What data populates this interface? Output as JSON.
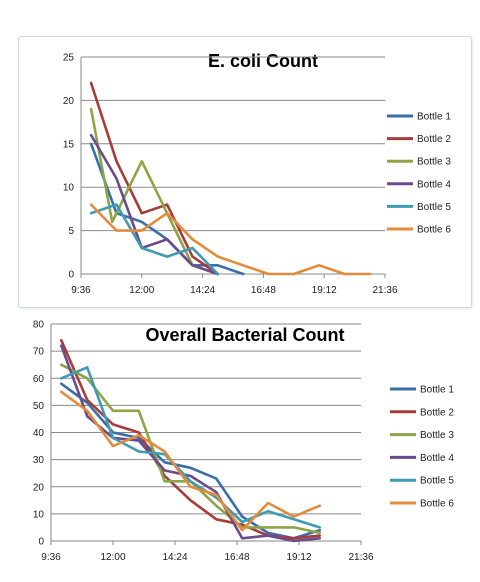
{
  "chart_data": [
    {
      "type": "line",
      "title": "E. coli Count",
      "xlabel": "",
      "ylabel": "",
      "x_ticks": [
        "9:36",
        "12:00",
        "14:24",
        "16:48",
        "19:12",
        "21:36"
      ],
      "y_ticks": [
        0,
        5,
        10,
        15,
        20,
        25
      ],
      "ylim": [
        0,
        25
      ],
      "xlim": [
        "9:36",
        "21:36"
      ],
      "grid": true,
      "legend_position": "right",
      "series": [
        {
          "name": "Bottle 1",
          "color": "#3a6ea8",
          "points": [
            [
              "10:00",
              15
            ],
            [
              "11:00",
              7
            ],
            [
              "12:00",
              6
            ],
            [
              "13:00",
              4
            ],
            [
              "14:00",
              1
            ],
            [
              "15:00",
              1
            ],
            [
              "16:00",
              0
            ]
          ]
        },
        {
          "name": "Bottle 2",
          "color": "#a83c3a",
          "points": [
            [
              "10:00",
              22
            ],
            [
              "11:00",
              13
            ],
            [
              "12:00",
              7
            ],
            [
              "13:00",
              8
            ],
            [
              "14:00",
              2
            ],
            [
              "15:00",
              0
            ]
          ]
        },
        {
          "name": "Bottle 3",
          "color": "#8ca546",
          "points": [
            [
              "10:00",
              19
            ],
            [
              "10:50",
              6
            ],
            [
              "12:00",
              13
            ],
            [
              "13:00",
              7
            ],
            [
              "14:00",
              1
            ],
            [
              "15:00",
              0
            ]
          ]
        },
        {
          "name": "Bottle 4",
          "color": "#6b4b8c",
          "points": [
            [
              "10:00",
              16
            ],
            [
              "11:00",
              11
            ],
            [
              "12:00",
              3
            ],
            [
              "13:00",
              4
            ],
            [
              "14:00",
              1
            ],
            [
              "15:00",
              0
            ]
          ]
        },
        {
          "name": "Bottle 5",
          "color": "#3e9bb3",
          "points": [
            [
              "10:00",
              7
            ],
            [
              "11:00",
              8
            ],
            [
              "12:00",
              3
            ],
            [
              "13:00",
              2
            ],
            [
              "14:00",
              3
            ],
            [
              "15:00",
              0
            ]
          ]
        },
        {
          "name": "Bottle 6",
          "color": "#e48b3a",
          "points": [
            [
              "10:00",
              8
            ],
            [
              "11:00",
              5
            ],
            [
              "12:00",
              5
            ],
            [
              "13:00",
              7
            ],
            [
              "14:00",
              4
            ],
            [
              "15:00",
              2
            ],
            [
              "16:00",
              1
            ],
            [
              "17:00",
              0
            ],
            [
              "18:00",
              0
            ],
            [
              "19:00",
              1
            ],
            [
              "20:00",
              0
            ],
            [
              "21:00",
              0
            ]
          ]
        }
      ]
    },
    {
      "type": "line",
      "title": "Overall Bacterial Count",
      "xlabel": "",
      "ylabel": "",
      "x_ticks": [
        "9:36",
        "12:00",
        "14:24",
        "16:48",
        "19:12",
        "21:36"
      ],
      "y_ticks": [
        0,
        10,
        20,
        30,
        40,
        50,
        60,
        70,
        80
      ],
      "ylim": [
        0,
        80
      ],
      "xlim": [
        "9:36",
        "21:36"
      ],
      "grid": true,
      "legend_position": "right",
      "series": [
        {
          "name": "Bottle 1",
          "color": "#3a6ea8",
          "points": [
            [
              "10:00",
              58
            ],
            [
              "11:00",
              51
            ],
            [
              "12:00",
              40
            ],
            [
              "13:00",
              38
            ],
            [
              "14:00",
              29
            ],
            [
              "15:00",
              27
            ],
            [
              "16:00",
              23
            ],
            [
              "17:00",
              9
            ],
            [
              "18:00",
              3
            ],
            [
              "19:00",
              1
            ],
            [
              "20:00",
              4
            ]
          ]
        },
        {
          "name": "Bottle 2",
          "color": "#a83c3a",
          "points": [
            [
              "10:00",
              74
            ],
            [
              "11:00",
              52
            ],
            [
              "12:00",
              43
            ],
            [
              "13:00",
              40
            ],
            [
              "14:00",
              24
            ],
            [
              "15:00",
              15
            ],
            [
              "16:00",
              8
            ],
            [
              "17:00",
              6
            ],
            [
              "18:00",
              2
            ],
            [
              "19:00",
              1
            ],
            [
              "20:00",
              2
            ]
          ]
        },
        {
          "name": "Bottle 3",
          "color": "#8ca546",
          "points": [
            [
              "10:00",
              65
            ],
            [
              "11:00",
              60
            ],
            [
              "12:00",
              48
            ],
            [
              "13:00",
              48
            ],
            [
              "14:00",
              22
            ],
            [
              "15:00",
              22
            ],
            [
              "16:00",
              13
            ],
            [
              "17:00",
              5
            ],
            [
              "18:00",
              5
            ],
            [
              "19:00",
              5
            ],
            [
              "20:00",
              3
            ]
          ]
        },
        {
          "name": "Bottle 4",
          "color": "#6b4b8c",
          "points": [
            [
              "10:00",
              72
            ],
            [
              "11:00",
              46
            ],
            [
              "12:00",
              38
            ],
            [
              "13:00",
              37
            ],
            [
              "14:00",
              26
            ],
            [
              "15:00",
              24
            ],
            [
              "16:00",
              18
            ],
            [
              "17:00",
              1
            ],
            [
              "18:00",
              2
            ],
            [
              "19:00",
              0
            ],
            [
              "20:00",
              1
            ]
          ]
        },
        {
          "name": "Bottle 5",
          "color": "#3e9bb3",
          "points": [
            [
              "10:00",
              60
            ],
            [
              "11:00",
              64
            ],
            [
              "12:00",
              38
            ],
            [
              "13:00",
              33
            ],
            [
              "14:00",
              32
            ],
            [
              "15:00",
              22
            ],
            [
              "16:00",
              16
            ],
            [
              "17:00",
              7
            ],
            [
              "18:00",
              11
            ],
            [
              "19:00",
              8
            ],
            [
              "20:00",
              5
            ]
          ]
        },
        {
          "name": "Bottle 6",
          "color": "#e48b3a",
          "points": [
            [
              "10:00",
              55
            ],
            [
              "11:00",
              48
            ],
            [
              "12:00",
              35
            ],
            [
              "13:00",
              39
            ],
            [
              "14:00",
              33
            ],
            [
              "15:00",
              20
            ],
            [
              "16:00",
              17
            ],
            [
              "17:00",
              4
            ],
            [
              "18:00",
              14
            ],
            [
              "19:00",
              9
            ],
            [
              "20:00",
              13
            ]
          ]
        }
      ]
    }
  ]
}
